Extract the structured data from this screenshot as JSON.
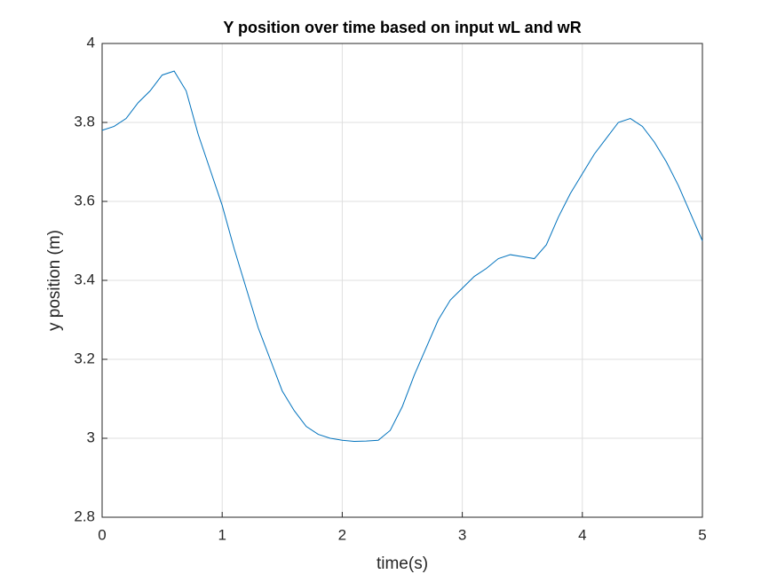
{
  "chart_data": {
    "type": "line",
    "title": "Y position over time based on input wL and wR",
    "x_label": "time(s)",
    "y_label": "y position (m)",
    "x": [
      0,
      0.1,
      0.2,
      0.3,
      0.4,
      0.5,
      0.6,
      0.7,
      0.8,
      0.9,
      1.0,
      1.1,
      1.2,
      1.3,
      1.4,
      1.5,
      1.6,
      1.7,
      1.8,
      1.9,
      2.0,
      2.1,
      2.2,
      2.3,
      2.4,
      2.5,
      2.6,
      2.7,
      2.8,
      2.9,
      3.0,
      3.1,
      3.2,
      3.3,
      3.4,
      3.5,
      3.6,
      3.7,
      3.8,
      3.9,
      4.0,
      4.1,
      4.2,
      4.3,
      4.4,
      4.5,
      4.6,
      4.7,
      4.8,
      4.9,
      5.0
    ],
    "series": [
      {
        "color": "#0072bd",
        "values": [
          3.78,
          3.79,
          3.81,
          3.85,
          3.88,
          3.92,
          3.93,
          3.88,
          3.77,
          3.68,
          3.59,
          3.48,
          3.38,
          3.28,
          3.2,
          3.12,
          3.07,
          3.03,
          3.01,
          3.0,
          2.995,
          2.992,
          2.993,
          2.995,
          3.02,
          3.08,
          3.16,
          3.23,
          3.3,
          3.35,
          3.38,
          3.41,
          3.43,
          3.455,
          3.465,
          3.46,
          3.455,
          3.49,
          3.56,
          3.62,
          3.67,
          3.72,
          3.76,
          3.8,
          3.81,
          3.79,
          3.75,
          3.7,
          3.64,
          3.57,
          3.5
        ]
      }
    ],
    "xlim": [
      0,
      5
    ],
    "xticks": [
      0,
      1,
      2,
      3,
      4,
      5
    ],
    "ylim": [
      2.8,
      4
    ],
    "yticks": [
      2.8,
      3,
      3.2,
      3.4,
      3.6,
      3.8,
      4
    ],
    "grid": true
  }
}
